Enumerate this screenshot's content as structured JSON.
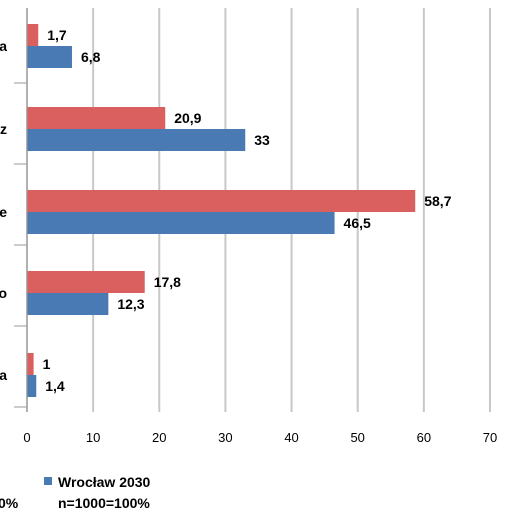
{
  "chart_data": {
    "type": "bar",
    "orientation": "horizontal",
    "categories": [
      "a",
      "z",
      "e",
      "o",
      "a"
    ],
    "series": [
      {
        "values": [
          1.7,
          20.9,
          58.7,
          17.8,
          1
        ],
        "color": "#d9605f"
      },
      {
        "name": "Wrocław 2030",
        "values": [
          6.8,
          33,
          46.5,
          12.3,
          1.4
        ],
        "color": "#4a7ab3"
      }
    ],
    "data_labels": [
      [
        "1,7",
        "20,9",
        "58,7",
        "17,8",
        "1"
      ],
      [
        "6,8",
        "33",
        "46,5",
        "12,3",
        "1,4"
      ]
    ],
    "x_ticks": [
      0,
      10,
      20,
      30,
      40,
      50,
      60,
      70
    ],
    "xlim": [
      0,
      70
    ],
    "grid": true,
    "legend_position": "bottom",
    "legend_fragment": "0%",
    "note": "n=1000=100%"
  }
}
